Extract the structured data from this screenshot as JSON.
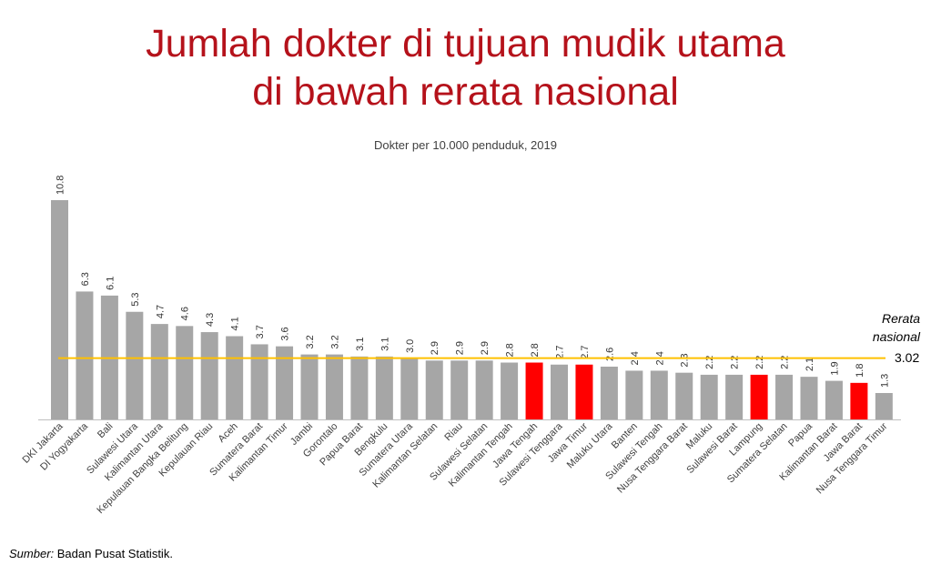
{
  "chart_data": {
    "type": "bar",
    "title": [
      "Jumlah dokter di tujuan mudik utama",
      "di bawah rerata nasional"
    ],
    "subtitle": "Dokter per 10.000 penduduk, 2019",
    "categories": [
      "DKI Jakarta",
      "DI Yogyakarta",
      "Bali",
      "Sulawesi Utara",
      "Kalimantan Utara",
      "Kepulauan Bangka Belitung",
      "Kepulauan Riau",
      "Aceh",
      "Sumatera Barat",
      "Kalimantan Timur",
      "Jambi",
      "Gorontalo",
      "Papua Barat",
      "Bengkulu",
      "Sumatera Utara",
      "Kalimantan Selatan",
      "Riau",
      "Sulawesi Selatan",
      "Kalimantan Tengah",
      "Jawa Tengah",
      "Sulawesi Tenggara",
      "Jawa Timur",
      "Maluku Utara",
      "Banten",
      "Sulawesi Tengah",
      "Nusa Tenggara Barat",
      "Maluku",
      "Sulawesi Barat",
      "Lampung",
      "Sumatera Selatan",
      "Papua",
      "Kalimantan Barat",
      "Jawa Barat",
      "Nusa Tenggara Timur"
    ],
    "values": [
      10.8,
      6.3,
      6.1,
      5.3,
      4.7,
      4.6,
      4.3,
      4.1,
      3.7,
      3.6,
      3.2,
      3.2,
      3.1,
      3.1,
      3.0,
      2.9,
      2.9,
      2.9,
      2.8,
      2.8,
      2.7,
      2.7,
      2.6,
      2.4,
      2.4,
      2.3,
      2.2,
      2.2,
      2.2,
      2.2,
      2.1,
      1.9,
      1.8,
      1.3
    ],
    "value_labels": [
      "10.8",
      "6.3",
      "6.1",
      "5.3",
      "4.7",
      "4.6",
      "4.3",
      "4.1",
      "3.7",
      "3.6",
      "3.2",
      "3.2",
      "3.1",
      "3.1",
      "3.0",
      "2.9",
      "2.9",
      "2.9",
      "2.8",
      "2.8",
      "2.7",
      "2.7",
      "2.6",
      "2.4",
      "2.4",
      "2.3",
      "2.2",
      "2.2",
      "2.2",
      "2.2",
      "2.1",
      "1.9",
      "1.8",
      "1.3"
    ],
    "highlighted": [
      "Jawa Tengah",
      "Jawa Timur",
      "Lampung",
      "Jawa Barat"
    ],
    "reference_line": {
      "label": [
        "Rerata",
        "nasional"
      ],
      "value": 3.02,
      "value_label": "3.02"
    },
    "ylim": [
      0,
      10.8
    ],
    "grid": false,
    "colors": {
      "default_bar": "#a6a6a6",
      "highlight_bar": "#ff0000",
      "reference_line": "#ffc000",
      "title": "#b5121b"
    }
  },
  "source": {
    "label": "Sumber:",
    "text": " Badan Pusat Statistik."
  }
}
